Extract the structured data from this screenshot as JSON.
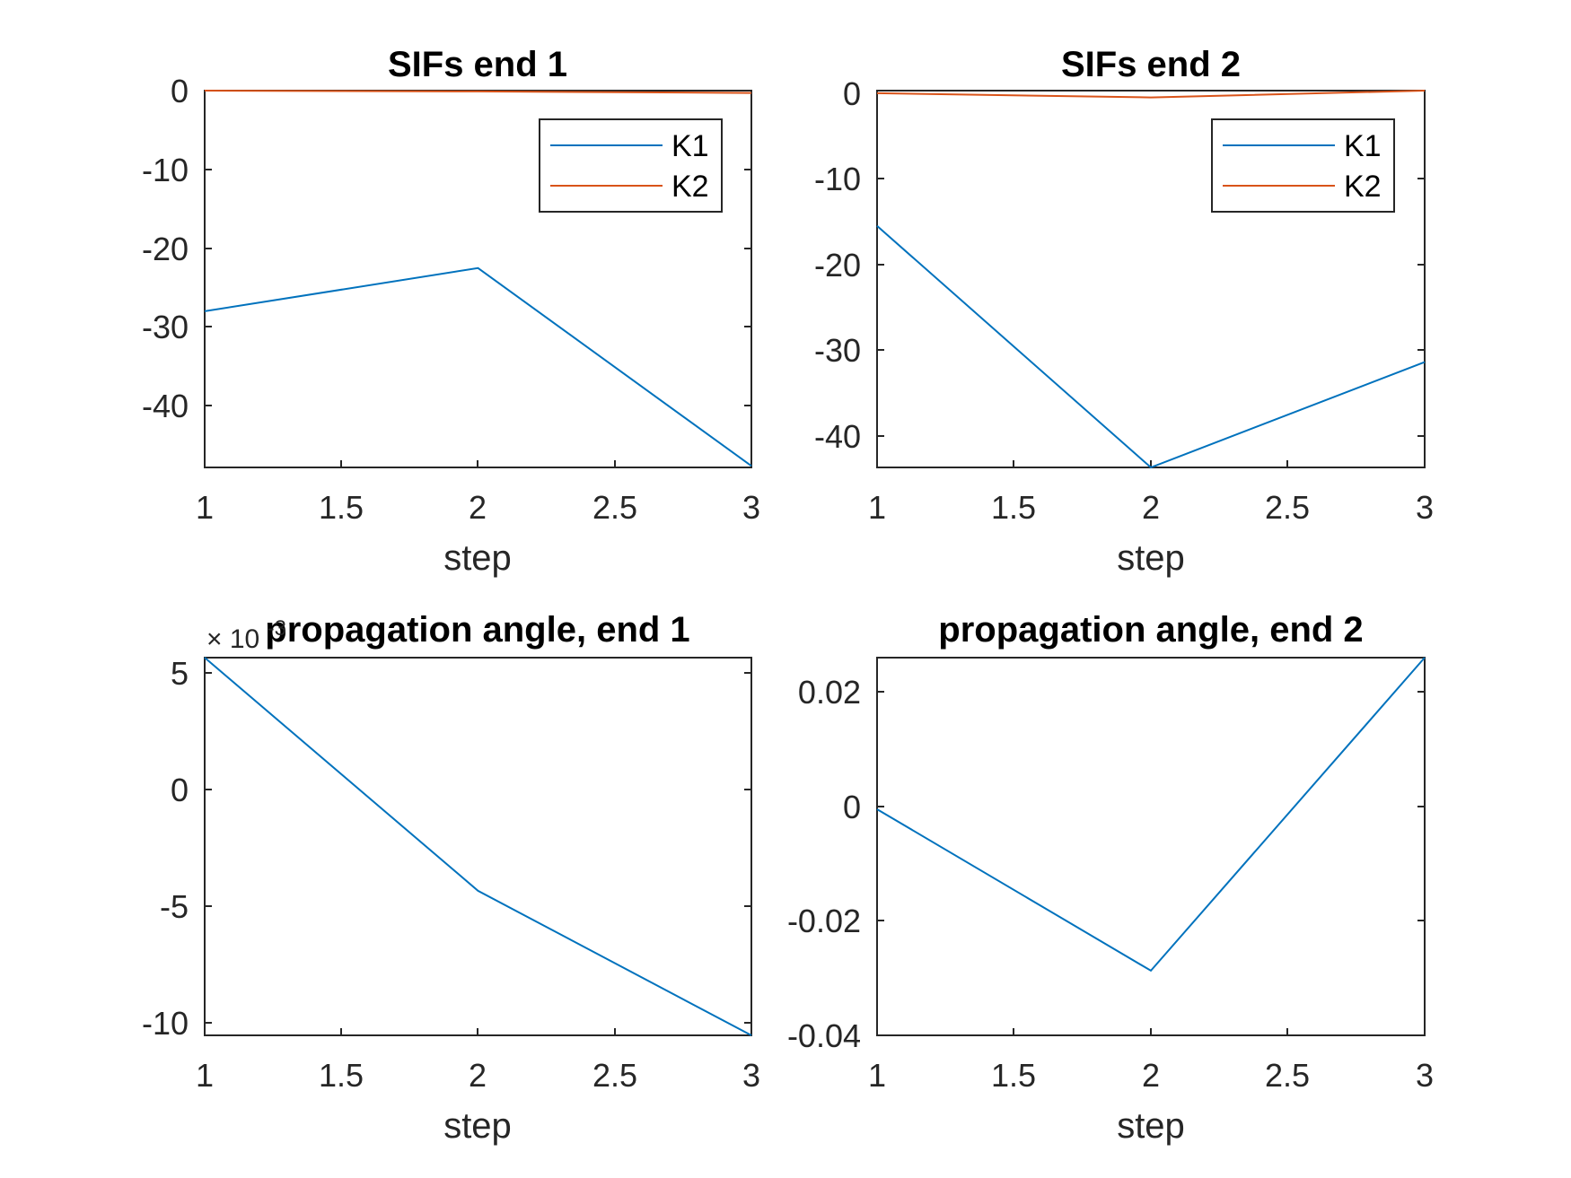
{
  "chart_data": [
    {
      "type": "line",
      "title": "SIFs end 1",
      "xlabel": "step",
      "ylabel": "",
      "x": [
        1,
        2,
        3
      ],
      "xlim": [
        1,
        3
      ],
      "ylim": [
        -48,
        0
      ],
      "xticks": [
        "1",
        "1.5",
        "2",
        "2.5",
        "3"
      ],
      "yticks": [
        "0",
        "-10",
        "-20",
        "-30",
        "-40"
      ],
      "series": [
        {
          "name": "K1",
          "values": [
            -28.1,
            -22.6,
            -47.8
          ],
          "color": "#0072BD"
        },
        {
          "name": "K2",
          "values": [
            0.0,
            -0.1,
            -0.3
          ],
          "color": "#D95319"
        }
      ],
      "legend": "top-right",
      "grid": false
    },
    {
      "type": "line",
      "title": "SIFs end 2",
      "xlabel": "step",
      "ylabel": "",
      "x": [
        1,
        2,
        3
      ],
      "xlim": [
        1,
        3
      ],
      "ylim": [
        -44,
        0
      ],
      "xticks": [
        "1",
        "1.5",
        "2",
        "2.5",
        "3"
      ],
      "yticks": [
        "0",
        "-10",
        "-20",
        "-30",
        "-40"
      ],
      "series": [
        {
          "name": "K1",
          "values": [
            -15.8,
            -44.0,
            -31.7
          ],
          "color": "#0072BD"
        },
        {
          "name": "K2",
          "values": [
            -0.3,
            -0.8,
            0.0
          ],
          "color": "#D95319"
        }
      ],
      "legend": "top-right",
      "grid": false
    },
    {
      "type": "line",
      "title": "propagation angle, end 1",
      "xlabel": "step",
      "ylabel": "",
      "multiplier": "× 10",
      "multiplier_exp": "-3",
      "x": [
        1,
        2,
        3
      ],
      "xlim": [
        1,
        3
      ],
      "ylim": [
        -10.5,
        5.7
      ],
      "xticks": [
        "1",
        "1.5",
        "2",
        "2.5",
        "3"
      ],
      "yticks": [
        "5",
        "0",
        "-5",
        "-10"
      ],
      "series": [
        {
          "values": [
            5.7,
            -4.3,
            -10.5
          ],
          "color": "#0072BD"
        }
      ],
      "grid": false
    },
    {
      "type": "line",
      "title": "propagation angle, end 2",
      "xlabel": "step",
      "ylabel": "",
      "x": [
        1,
        2,
        3
      ],
      "xlim": [
        1,
        3
      ],
      "ylim": [
        -0.04,
        0.026
      ],
      "xticks": [
        "1",
        "1.5",
        "2",
        "2.5",
        "3"
      ],
      "yticks": [
        "0.02",
        "0",
        "-0.02",
        "-0.04"
      ],
      "series": [
        {
          "values": [
            -0.0005,
            -0.0287,
            0.026
          ],
          "color": "#0072BD"
        }
      ],
      "grid": false
    }
  ]
}
